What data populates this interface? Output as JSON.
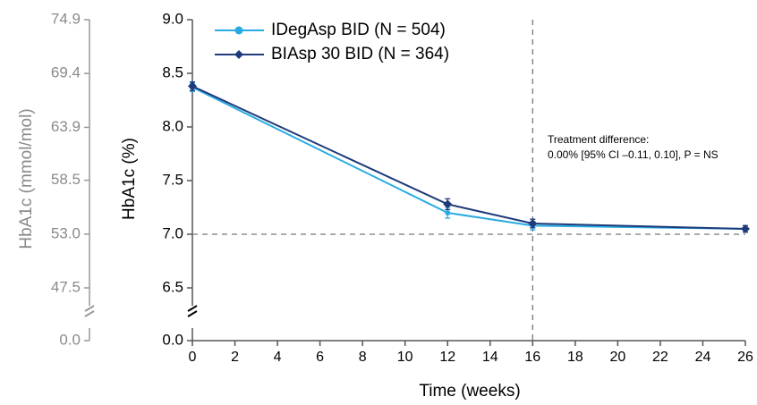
{
  "chart_data": {
    "type": "line",
    "xlabel": "Time (weeks)",
    "ylabel": "HbA1c (%)",
    "y2label": "HbA1c (mmol/mol)",
    "x": [
      0,
      12,
      16,
      26
    ],
    "xlim": [
      0,
      26
    ],
    "xticks": [
      0,
      2,
      4,
      6,
      8,
      10,
      12,
      14,
      16,
      18,
      20,
      22,
      24,
      26
    ],
    "ylim": [
      0,
      9.0
    ],
    "y_break": [
      0,
      6.5
    ],
    "yticks": [
      {
        "value": 0,
        "label": "0.0"
      },
      6.5,
      {
        "value": 7,
        "label": "7.0"
      },
      7.5,
      {
        "value": 8,
        "label": "8.0"
      },
      8.5,
      {
        "value": 9,
        "label": "9.0"
      }
    ],
    "y2lim": [
      0,
      74.9
    ],
    "y2_break": [
      0,
      47.5
    ],
    "y2ticks": [
      {
        "value": 0,
        "label": "0.0"
      },
      47.5,
      {
        "value": 53,
        "label": "53.0"
      },
      58.5,
      63.9,
      69.4,
      74.9
    ],
    "hlines": [
      7.0
    ],
    "vlines": [
      16
    ],
    "legend": "upper left",
    "series": [
      {
        "name": "IDegAsp BID (N = 504)",
        "color": "#29abe2",
        "marker": "circle",
        "values": [
          8.37,
          7.2,
          7.08,
          7.05
        ],
        "errors": [
          0.04,
          0.05,
          0.04,
          0.03
        ]
      },
      {
        "name": "BIAsp 30 BID (N = 364)",
        "color": "#1f3b7a",
        "marker": "diamond",
        "values": [
          8.38,
          7.28,
          7.1,
          7.05
        ],
        "errors": [
          0.04,
          0.05,
          0.04,
          0.03
        ]
      }
    ],
    "annotation": [
      "Treatment difference:",
      "0.00% [95% CI –0.11, 0.10], P = NS"
    ]
  }
}
